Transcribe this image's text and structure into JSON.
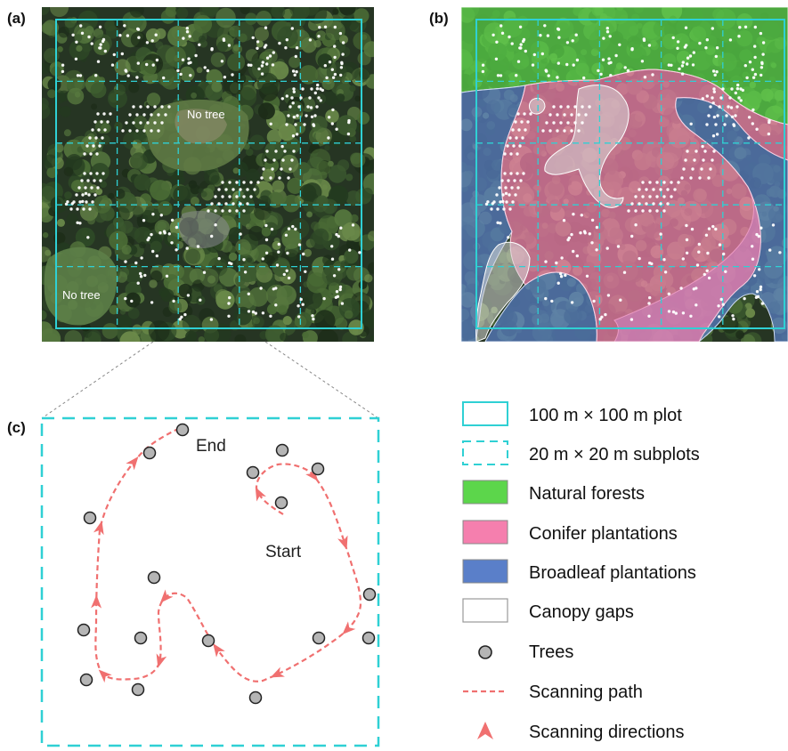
{
  "panels": {
    "a": {
      "label": "(a)",
      "no_tree_top": "No tree",
      "no_tree_bottom": "No tree"
    },
    "b": {
      "label": "(b)"
    },
    "c": {
      "label": "(c)",
      "start_label": "Start",
      "end_label": "End"
    }
  },
  "legend": {
    "plot": "100 m × 100 m plot",
    "subplots": "20 m × 20 m subplots",
    "natural": "Natural forests",
    "conifer": "Conifer plantations",
    "broadleaf": "Broadleaf plantations",
    "gaps": "Canopy gaps",
    "trees": "Trees",
    "scanning_path": "Scanning path",
    "scanning_directions": "Scanning directions"
  },
  "colors": {
    "plot_boundary": "#2fd0d4",
    "natural": "#5cd64b",
    "conifer": "#f57fae",
    "broadleaf": "#5a7fc9",
    "gaps": "#ffffff",
    "tree_fill": "#b5b5b5",
    "scan_path": "#f07070"
  }
}
